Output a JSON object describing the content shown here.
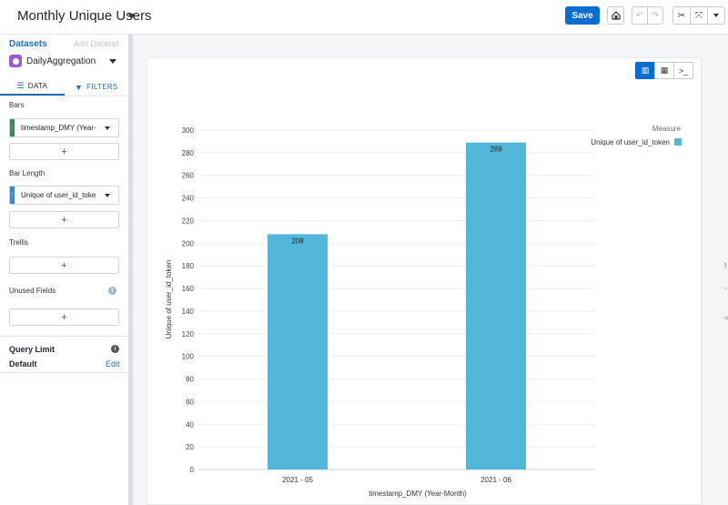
{
  "header": {
    "title": "Monthly Unique Users",
    "save_label": "Save",
    "icons": [
      "share-icon",
      "undo-icon",
      "redo-icon",
      "cut-icon",
      "fullscreen-icon",
      "more-caret-icon"
    ]
  },
  "sidebar": {
    "datasets_label": "Datasets",
    "add_dataset_label": "Add Dataset",
    "dataset_name": "DailyAggregation",
    "tabs": [
      {
        "label": "DATA",
        "active": true
      },
      {
        "label": "FILTERS",
        "active": false
      }
    ],
    "bars_label": "Bars",
    "bars_field": "timestamp_DMY (Year-",
    "bar_length_label": "Bar Length",
    "bar_length_field": "Unique of user_id_toke",
    "trellis_label": "Trellis",
    "unused_fields_label": "Unused Fields",
    "add_symbol": "+",
    "query_limit_label": "Query Limit",
    "default_label": "Default",
    "edit_label": "Edit"
  },
  "colors": {
    "accent": "#0a6ed1",
    "bar": "#52b7d8"
  },
  "chart_data": {
    "type": "bar",
    "categories": [
      "2021 - 05",
      "2021 - 06"
    ],
    "series": [
      {
        "name": "Unique of user_id_token",
        "values": [
          208,
          289
        ]
      }
    ],
    "data_labels": [
      "208",
      "289"
    ],
    "xlabel": "timestamp_DMY (Year-Month)",
    "ylabel": "Unique of user_id_token",
    "ylim": [
      0,
      300
    ],
    "yticks": [
      0,
      20,
      40,
      60,
      80,
      100,
      120,
      140,
      160,
      180,
      200,
      220,
      240,
      260,
      280,
      300
    ],
    "legend_title": "Measure",
    "legend_position": "top-right",
    "grid": true
  }
}
